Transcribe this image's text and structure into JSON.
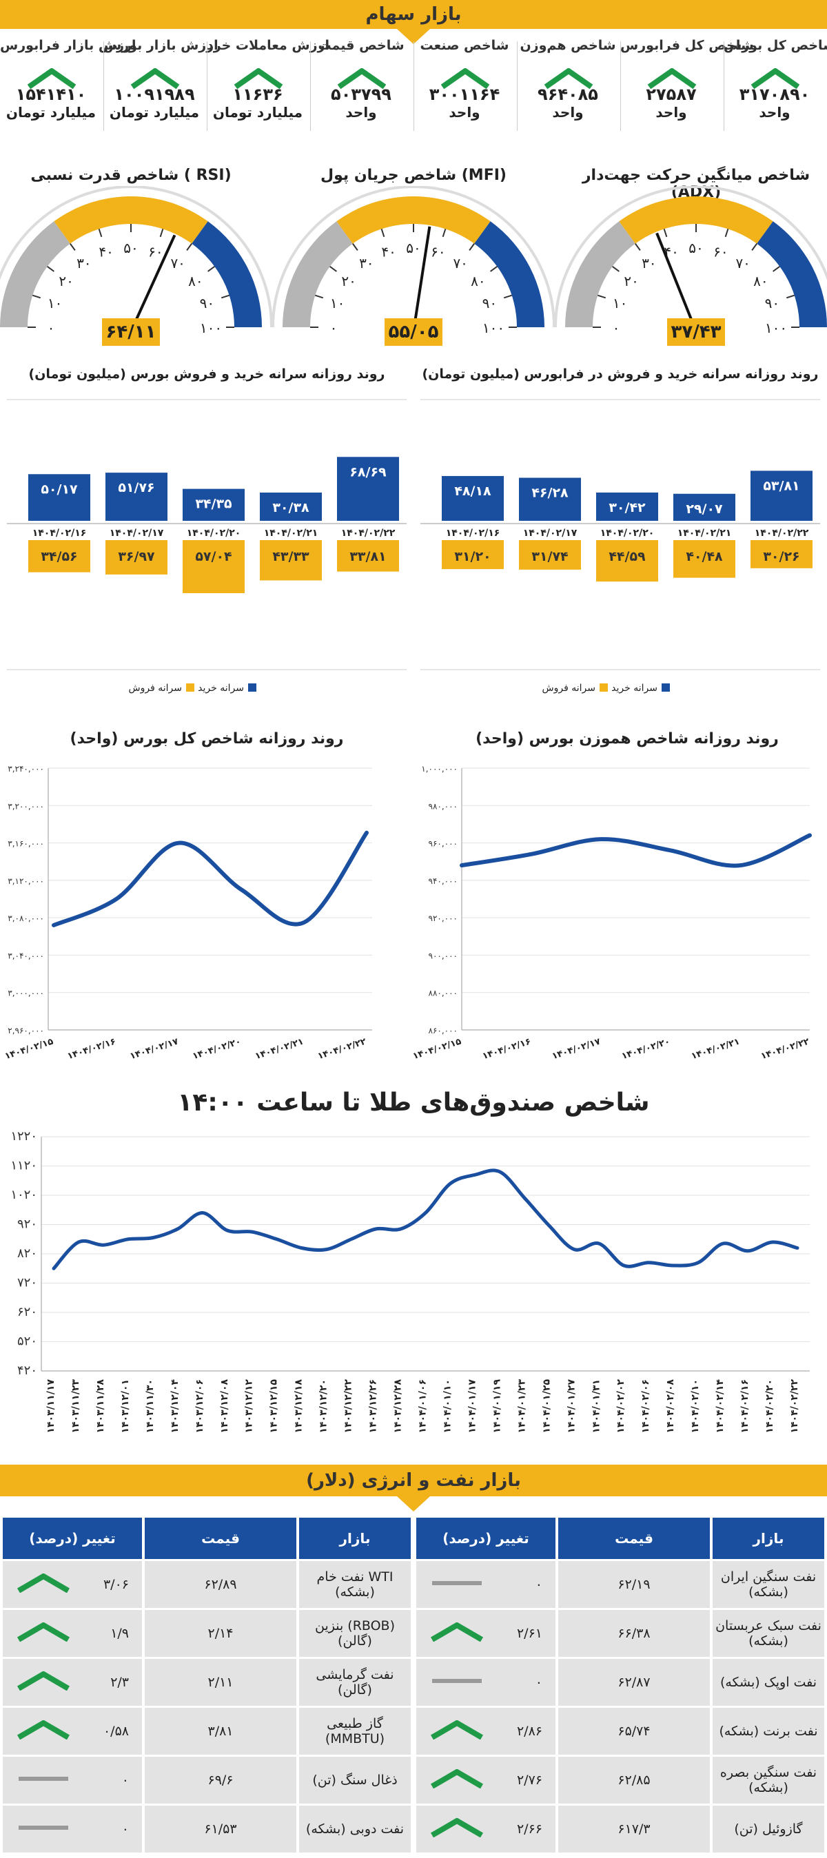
{
  "colors": {
    "blue": "#1a4fa0",
    "yellow": "#f2b21a",
    "green": "#1f9b48",
    "gray": "#999999",
    "light": "#e3e3e3"
  },
  "header": {
    "title": "بازار سهام"
  },
  "indicators": [
    {
      "label": "ارزش بازار فرابورس",
      "value": "۱۵۴۱۴۱۰",
      "unit": "میلیارد تومان",
      "trend": "up"
    },
    {
      "label": "ارزش بازار بورس",
      "value": "۱۰۰۹۱۹۸۹",
      "unit": "میلیارد تومان",
      "trend": "up"
    },
    {
      "label": "ارزش معاملات خرد",
      "value": "۱۱۶۳۶",
      "unit": "میلیارد تومان",
      "trend": "up"
    },
    {
      "label": "شاخص قیمت",
      "value": "۵۰۳۷۹۹",
      "unit": "واحد",
      "trend": "up"
    },
    {
      "label": "شاخص صنعت",
      "value": "۳۰۰۱۱۶۴",
      "unit": "واحد",
      "trend": "up"
    },
    {
      "label": "شاخص هم‌وزن",
      "value": "۹۶۴۰۸۵",
      "unit": "واحد",
      "trend": "up"
    },
    {
      "label": "شاخص کل فرابورس",
      "value": "۲۷۵۸۷",
      "unit": "واحد",
      "trend": "up"
    },
    {
      "label": "شاخص کل بورس",
      "value": "۳۱۷۰۸۹۰",
      "unit": "واحد",
      "trend": "up"
    }
  ],
  "gauges": [
    {
      "title": "شاخص قدرت نسبی ( RSI)",
      "value": 64.11,
      "value_label": "۶۴/۱۱"
    },
    {
      "title": "شاخص جریان پول (MFI)",
      "value": 55.05,
      "value_label": "۵۵/۰۵"
    },
    {
      "title": "شاخص میانگین حرکت جهت‌دار (ADX)",
      "value": 37.43,
      "value_label": "۳۷/۴۳"
    }
  ],
  "gauge_ticks": [
    "۰",
    "۱۰",
    "۲۰",
    "۳۰",
    "۴۰",
    "۵۰",
    "۶۰",
    "۷۰",
    "۸۰",
    "۹۰",
    "۱۰۰"
  ],
  "chart_data": [
    {
      "type": "bar",
      "title": "روند روزانه سرانه خرید و فروش بورس (میلیون تومان)",
      "categories": [
        "۱۴۰۴/۰۲/۱۶",
        "۱۴۰۴/۰۲/۱۷",
        "۱۴۰۴/۰۲/۲۰",
        "۱۴۰۴/۰۲/۲۱",
        "۱۴۰۴/۰۲/۲۲"
      ],
      "series": [
        {
          "name": "سرانه خرید",
          "values": [
            50.17,
            51.76,
            34.35,
            30.38,
            68.69
          ],
          "labels": [
            "۵۰/۱۷",
            "۵۱/۷۶",
            "۳۴/۳۵",
            "۳۰/۳۸",
            "۶۸/۶۹"
          ]
        },
        {
          "name": "سرانه فروش",
          "values": [
            34.56,
            36.97,
            57.04,
            43.33,
            33.81
          ],
          "labels": [
            "۳۴/۵۶",
            "۳۶/۹۷",
            "۵۷/۰۴",
            "۴۳/۳۳",
            "۳۳/۸۱"
          ]
        }
      ],
      "legend": "bottom"
    },
    {
      "type": "bar",
      "title": "روند روزانه سرانه خرید و فروش در فرابورس (میلیون تومان)",
      "categories": [
        "۱۴۰۴/۰۲/۱۶",
        "۱۴۰۴/۰۲/۱۷",
        "۱۴۰۴/۰۲/۲۰",
        "۱۴۰۴/۰۲/۲۱",
        "۱۴۰۴/۰۲/۲۲"
      ],
      "series": [
        {
          "name": "سرانه خرید",
          "values": [
            48.18,
            46.28,
            30.42,
            29.07,
            53.81
          ],
          "labels": [
            "۴۸/۱۸",
            "۴۶/۲۸",
            "۳۰/۴۲",
            "۲۹/۰۷",
            "۵۳/۸۱"
          ]
        },
        {
          "name": "سرانه فروش",
          "values": [
            31.2,
            31.74,
            44.59,
            40.48,
            30.26
          ],
          "labels": [
            "۳۱/۲۰",
            "۳۱/۷۴",
            "۴۴/۵۹",
            "۴۰/۴۸",
            "۳۰/۲۶"
          ]
        }
      ],
      "legend": "bottom"
    },
    {
      "type": "line",
      "title": "روند روزانه شاخص کل بورس (واحد)",
      "x": [
        "۱۴۰۴/۰۲/۱۵",
        "۱۴۰۴/۰۲/۱۶",
        "۱۴۰۴/۰۲/۱۷",
        "۱۴۰۴/۰۲/۲۰",
        "۱۴۰۴/۰۲/۲۱",
        "۱۴۰۴/۰۲/۲۲"
      ],
      "y": [
        3072000,
        3100000,
        3160000,
        3110000,
        3075000,
        3170890
      ],
      "ylim": [
        2960000,
        3240000
      ],
      "yticks": [
        2960000,
        3000000,
        3040000,
        3080000,
        3120000,
        3160000,
        3200000,
        3240000
      ],
      "ytick_labels": [
        "۲,۹۶۰,۰۰۰",
        "۳,۰۰۰,۰۰۰",
        "۳,۰۴۰,۰۰۰",
        "۳,۰۸۰,۰۰۰",
        "۳,۱۲۰,۰۰۰",
        "۳,۱۶۰,۰۰۰",
        "۳,۲۰۰,۰۰۰",
        "۳,۲۴۰,۰۰۰"
      ]
    },
    {
      "type": "line",
      "title": "روند روزانه شاخص هموزن بورس (واحد)",
      "x": [
        "۱۴۰۴/۰۲/۱۵",
        "۱۴۰۴/۰۲/۱۶",
        "۱۴۰۴/۰۲/۱۷",
        "۱۴۰۴/۰۲/۲۰",
        "۱۴۰۴/۰۲/۲۱",
        "۱۴۰۴/۰۲/۲۲"
      ],
      "y": [
        948000,
        954000,
        962000,
        956000,
        948000,
        964085
      ],
      "ylim": [
        860000,
        1000000
      ],
      "yticks": [
        860000,
        880000,
        900000,
        920000,
        940000,
        960000,
        980000,
        1000000
      ],
      "ytick_labels": [
        "۸۶۰,۰۰۰",
        "۸۸۰,۰۰۰",
        "۹۰۰,۰۰۰",
        "۹۲۰,۰۰۰",
        "۹۴۰,۰۰۰",
        "۹۶۰,۰۰۰",
        "۹۸۰,۰۰۰",
        "۱,۰۰۰,۰۰۰"
      ]
    },
    {
      "type": "line",
      "title": "شاخص صندوق‌های طلا تا ساعت ۱۴:۰۰",
      "x": [
        "۱۴۰۳/۱۱/۱۷",
        "۱۴۰۳/۱۱/۲۳",
        "۱۴۰۳/۱۱/۲۸",
        "۱۴۰۳/۱۲/۰۱",
        "۱۴۰۳/۱۱/۳۰",
        "۱۴۰۳/۱۲/۰۴",
        "۱۴۰۳/۱۲/۰۶",
        "۱۴۰۳/۱۲/۰۸",
        "۱۴۰۳/۱۲/۱۲",
        "۱۴۰۳/۱۲/۱۵",
        "۱۴۰۳/۱۲/۱۸",
        "۱۴۰۳/۱۲/۲۰",
        "۱۴۰۳/۱۲/۲۲",
        "۱۴۰۳/۱۲/۲۶",
        "۱۴۰۳/۱۲/۲۸",
        "۱۴۰۴/۰۱/۰۶",
        "۱۴۰۴/۰۱/۱۰",
        "۱۴۰۴/۰۱/۱۷",
        "۱۴۰۴/۰۱/۱۹",
        "۱۴۰۴/۰۱/۲۳",
        "۱۴۰۴/۰۱/۲۵",
        "۱۴۰۴/۰۱/۲۷",
        "۱۴۰۴/۰۱/۳۱",
        "۱۴۰۴/۰۲/۰۲",
        "۱۴۰۴/۰۲/۰۶",
        "۱۴۰۴/۰۲/۰۸",
        "۱۴۰۴/۰۲/۱۰",
        "۱۴۰۴/۰۲/۱۴",
        "۱۴۰۴/۰۲/۱۶",
        "۱۴۰۴/۰۲/۲۰",
        "۱۴۰۴/۰۲/۲۲"
      ],
      "y": [
        770,
        860,
        850,
        870,
        875,
        905,
        960,
        900,
        895,
        870,
        840,
        835,
        870,
        905,
        905,
        960,
        1060,
        1090,
        1100,
        1010,
        915,
        835,
        855,
        780,
        790,
        780,
        790,
        855,
        830,
        860,
        840
      ],
      "ylim": [
        420,
        1220
      ],
      "yticks": [
        420,
        520,
        620,
        720,
        820,
        920,
        1020,
        1120,
        1220
      ],
      "ytick_labels": [
        "۴۲۰",
        "۵۲۰",
        "۶۲۰",
        "۷۲۰",
        "۸۲۰",
        "۹۲۰",
        "۱۰۲۰",
        "۱۱۲۰",
        "۱۲۲۰"
      ]
    },
    {
      "type": "table",
      "title": "بازار نفت و انرژی (دلار)",
      "columns": [
        "بازار",
        "قیمت",
        "تغییر (درصد)"
      ],
      "rows": [
        {
          "market": "نفت سنگین ایران (بشکه)",
          "price": "۶۲/۱۹",
          "change": "۰",
          "trend": "flat"
        },
        {
          "market": "نفت سبک عربستان (بشکه)",
          "price": "۶۶/۳۸",
          "change": "۲/۶۱",
          "trend": "up"
        },
        {
          "market": "نفت اوپک (بشکه)",
          "price": "۶۲/۸۷",
          "change": "۰",
          "trend": "flat"
        },
        {
          "market": "نفت برنت (بشکه)",
          "price": "۶۵/۷۴",
          "change": "۲/۸۶",
          "trend": "up"
        },
        {
          "market": "نفت سنگین بصره (بشکه)",
          "price": "۶۲/۸۵",
          "change": "۲/۷۶",
          "trend": "up"
        },
        {
          "market": "گازوئیل (تن)",
          "price": "۶۱۷/۳",
          "change": "۲/۶۶",
          "trend": "up"
        },
        {
          "market": "نفت خام WTI (بشکه)",
          "price": "۶۲/۸۹",
          "change": "۳/۰۶",
          "trend": "up"
        },
        {
          "market": "بنزین (RBOB) (گالن)",
          "price": "۲/۱۴",
          "change": "۱/۹",
          "trend": "up"
        },
        {
          "market": "نفت گرمایشی (گالن)",
          "price": "۲/۱۱",
          "change": "۲/۳",
          "trend": "up"
        },
        {
          "market": "گاز طبیعی (MMBTU)",
          "price": "۳/۸۱",
          "change": "۰/۵۸",
          "trend": "up"
        },
        {
          "market": "ذغال سنگ (تن)",
          "price": "۶۹/۶",
          "change": "۰",
          "trend": "flat"
        },
        {
          "market": "نفت دوبی (بشکه)",
          "price": "۶۱/۵۳",
          "change": "۰",
          "trend": "flat"
        }
      ]
    }
  ]
}
